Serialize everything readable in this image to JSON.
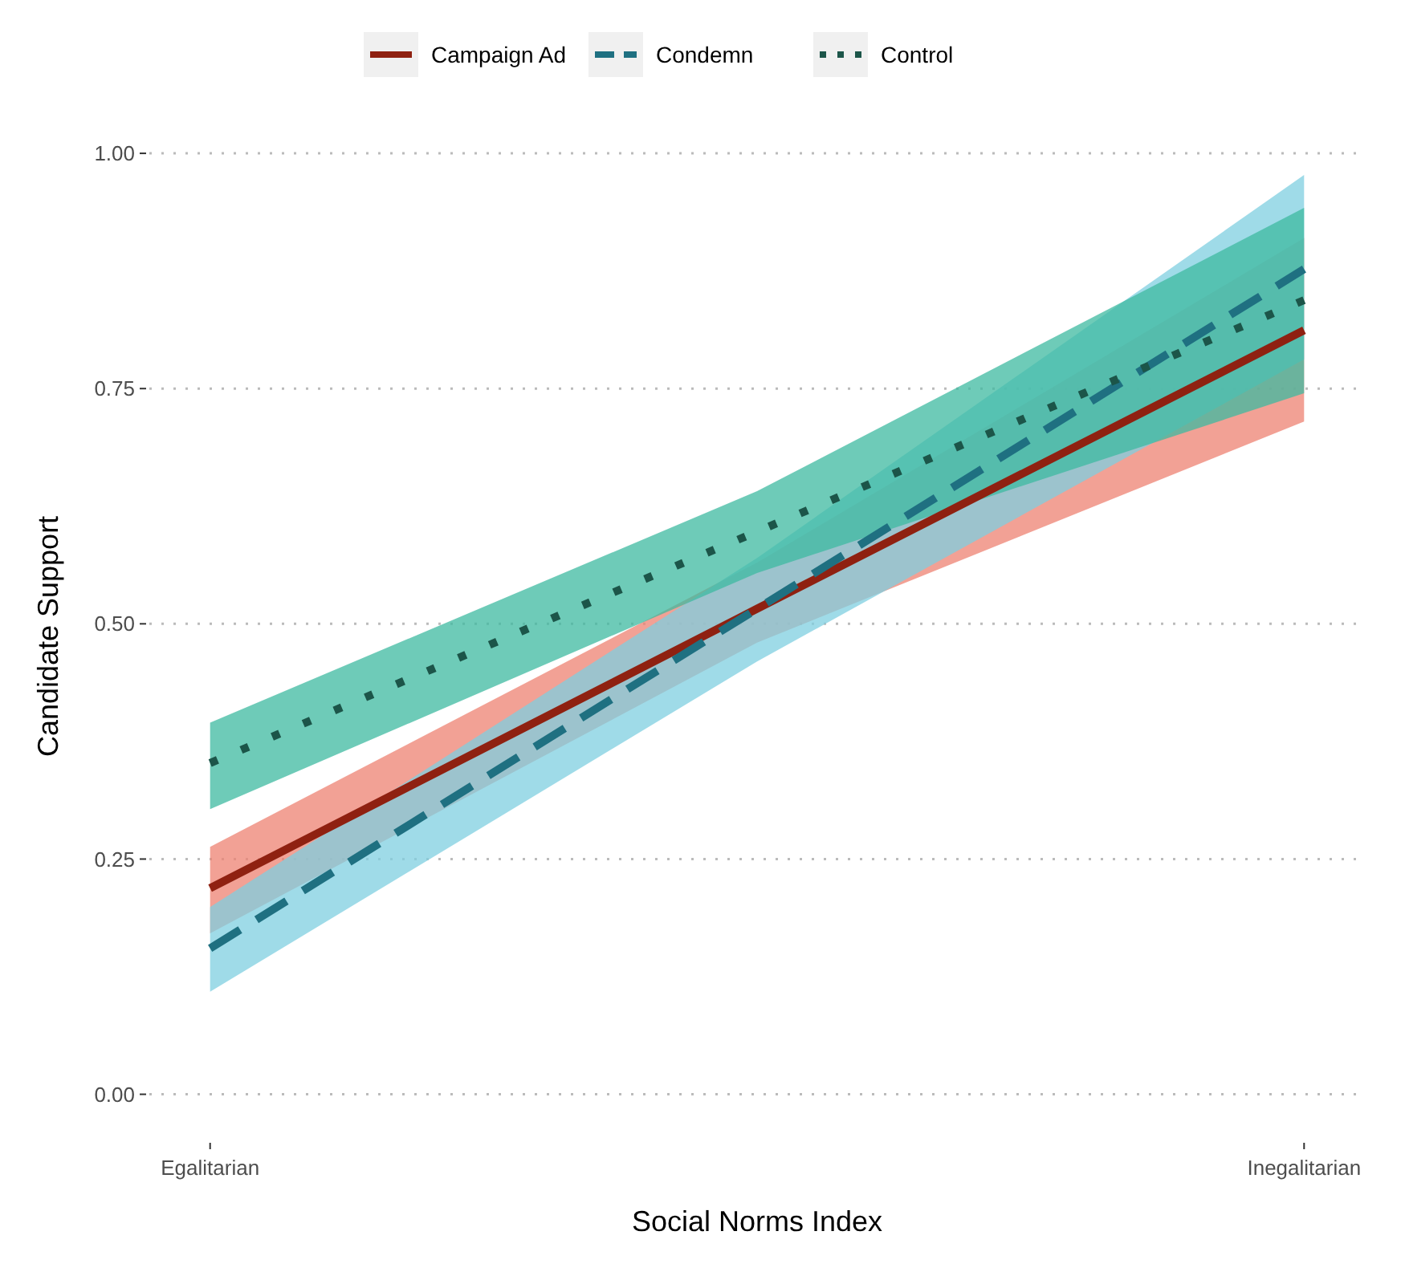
{
  "chart_data": {
    "type": "line",
    "xlabel": "Social Norms Index",
    "ylabel": "Candidate Support",
    "categories": [
      "Egalitarian",
      null,
      "Inegalitarian"
    ],
    "ylim": [
      0,
      1
    ],
    "yticks": [
      {
        "value": 0,
        "label": "0.00"
      },
      {
        "value": 0.25,
        "label": "0.25"
      },
      {
        "value": 0.5,
        "label": "0.50"
      },
      {
        "value": 0.75,
        "label": "0.75"
      },
      {
        "value": 1,
        "label": "1.00"
      }
    ],
    "grid": "y",
    "legend": "top",
    "series": [
      {
        "name": "Campaign Ad",
        "color": "#8f2111",
        "line_style": "solid",
        "values": [
          0.219,
          0.516,
          0.812
        ],
        "lower": [
          0.171,
          0.48,
          0.715
        ],
        "upper": [
          0.263,
          0.565,
          0.91
        ]
      },
      {
        "name": "Condemn",
        "color": "#1f7081",
        "line_style": "dashed",
        "values": [
          0.155,
          0.516,
          0.877
        ],
        "lower": [
          0.109,
          0.46,
          0.781
        ],
        "upper": [
          0.199,
          0.57,
          0.977
        ]
      },
      {
        "name": "Control",
        "color": "#1c5549",
        "line_style": "dotted",
        "values": [
          0.352,
          0.598,
          0.844
        ],
        "lower": [
          0.303,
          0.554,
          0.745
        ],
        "upper": [
          0.395,
          0.641,
          0.942
        ]
      }
    ]
  }
}
